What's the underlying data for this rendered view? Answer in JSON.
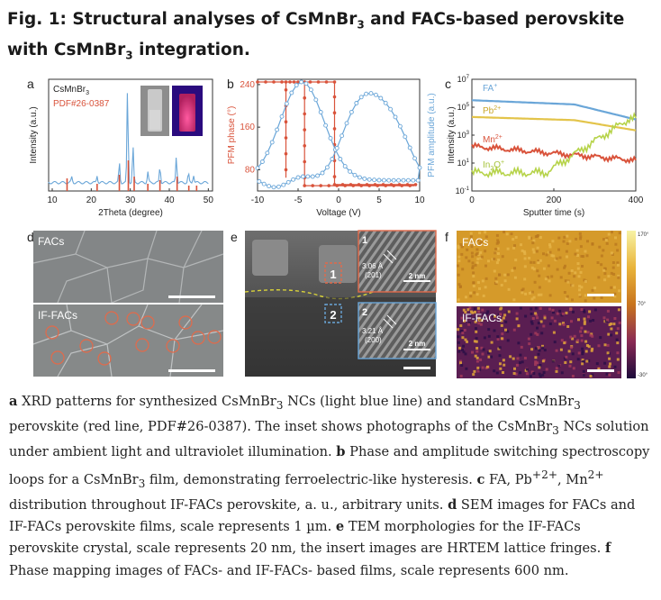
{
  "title": {
    "prefix": "Fig. 1: Structural analyses of CsMnBr",
    "sub1": "3",
    "middle": " and FACs-based perovskite with CsMnBr",
    "sub2": "3",
    "suffix": " integration."
  },
  "panel_a": {
    "label": "a",
    "legend_line1": "CsMnBr",
    "legend_line1_sub": "3",
    "legend_line2": "PDF#26-0387",
    "xlabel": "2Theta (degree)",
    "ylabel": "Intensity (a.u.)",
    "xticks": [
      "10",
      "20",
      "30",
      "40",
      "50"
    ],
    "colors": {
      "measured": "#6aa6d8",
      "reference": "#d9533b"
    }
  },
  "panel_b": {
    "label": "b",
    "xlabel": "Voltage (V)",
    "ylabel_left": "PFM phase (°)",
    "ylabel_right": "PFM amplitude (a.u.)",
    "xticks": [
      "-10",
      "-5",
      "0",
      "5",
      "10"
    ],
    "yticks_left": [
      "240",
      "160",
      "80"
    ],
    "colors": {
      "phase": "#d9533b",
      "amplitude": "#6aa6d8"
    }
  },
  "panel_c": {
    "label": "c",
    "xlabel": "Sputter time (s)",
    "ylabel": "Intensity (a.u.)",
    "xticks": [
      "0",
      "200",
      "400"
    ],
    "ytick_base": "10",
    "ytick_exps": [
      "7",
      "5",
      "3",
      "1",
      "-1"
    ],
    "series_labels": {
      "fa": "FA",
      "fa_sup": "+",
      "pb": "Pb",
      "pb_sup": "2+",
      "mn": "Mn",
      "mn_sup": "2+",
      "in": "In",
      "in_sub": "2",
      "in_mid": "O",
      "in_sup": "+"
    },
    "colors": {
      "fa": "#6aa6d8",
      "pb": "#e3c44a",
      "mn": "#d9533b",
      "in": "#b6d349"
    }
  },
  "panel_d": {
    "label": "d",
    "top_label": "FACs",
    "bottom_label": "IF-FACs"
  },
  "panel_e": {
    "label": "e",
    "region1": "1",
    "region2": "2",
    "inset1_num": "1",
    "inset1_d": "3.06 Å",
    "inset1_hkl": "(201)",
    "inset1_scale": "2 nm",
    "inset2_num": "2",
    "inset2_d": "3.21 Å",
    "inset2_hkl": "(200)",
    "inset2_scale": "2 nm"
  },
  "panel_f": {
    "label": "f",
    "top_label": "FACs",
    "bottom_label": "IF-FACs",
    "colorbar_top": "170°",
    "colorbar_mid": "70°",
    "colorbar_bottom": "-30°"
  },
  "caption": {
    "a_bold": "a",
    "a_text1": " XRD patterns for synthesized CsMnBr",
    "a_sub1": "3",
    "a_text2": " NCs (light blue line) and standard CsMnBr",
    "a_sub2": "3",
    "a_text3": " perovskite (red line, PDF#26-0387). The inset shows photographs of the CsMnBr",
    "a_sub3": "3",
    "a_text4": " NCs solution under ambient light and ultraviolet illumination. ",
    "b_bold": "b",
    "b_text1": " Phase and amplitude switching spectroscopy loops for a CsMnBr",
    "b_sub1": "3",
    "b_text2": " film, demonstrating ferroelectric-like hysteresis. ",
    "c_bold": "c",
    "c_text1": " FA, Pb",
    "c_sup1": "+2+",
    "c_text2": ", Mn",
    "c_sup2": "2+",
    "c_text3": " distribution throughout IF-FACs perovskite, a. u., arbitrary units. ",
    "d_bold": "d",
    "d_text": " SEM images for FACs and IF-FACs perovskite films, scale represents 1 µm. ",
    "e_bold": "e",
    "e_text": " TEM morphologies for the IF-FACs perovskite crystal, scale represents 20 nm, the insert images are HRTEM lattice fringes. ",
    "f_bold": "f",
    "f_text": " Phase mapping images of FACs- and IF-FACs- based films, scale represents 600 nm."
  }
}
